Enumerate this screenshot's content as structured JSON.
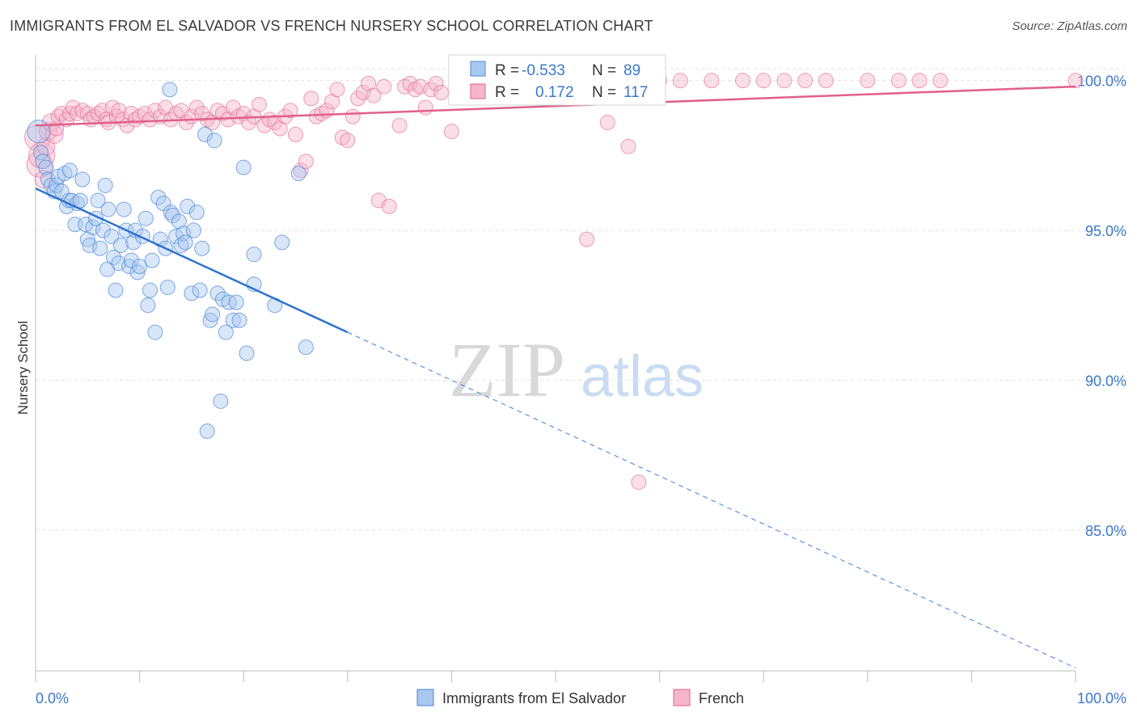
{
  "header": {
    "title": "IMMIGRANTS FROM EL SALVADOR VS FRENCH NURSERY SCHOOL CORRELATION CHART",
    "source": "Source: ZipAtlas.com"
  },
  "watermark": {
    "zip": "ZIP",
    "atlas": "atlas"
  },
  "chart_data": {
    "type": "scatter",
    "title": "IMMIGRANTS FROM EL SALVADOR VS FRENCH NURSERY SCHOOL CORRELATION CHART",
    "xlabel": "",
    "ylabel": "Nursery School",
    "xlim": [
      0,
      100
    ],
    "ylim": [
      80.3,
      100.8
    ],
    "x_tick_labels": [
      "0.0%",
      "100.0%"
    ],
    "y_ticks": [
      85,
      90,
      95,
      100
    ],
    "y_tick_labels": [
      "85.0%",
      "90.0%",
      "95.0%",
      "100.0%"
    ],
    "grid": true,
    "legend_position": "bottom-center",
    "colors": {
      "blue": "#4a86d4",
      "blue_fill": "#a9c8ef",
      "pink": "#e0608a",
      "pink_fill": "#f5b6cb",
      "tick": "#3a78c9"
    },
    "stats": [
      {
        "series": "Immigrants from El Salvador",
        "r_label": "R =",
        "r_value": "-0.533",
        "n_label": "N =",
        "n_value": "89"
      },
      {
        "series": "French",
        "r_label": "R =",
        "r_value": "0.172",
        "n_label": "N =",
        "n_value": "117"
      }
    ],
    "series": [
      {
        "name": "Immigrants from El Salvador",
        "color": "#4a86d4",
        "trend": {
          "x": [
            0,
            30
          ],
          "y": [
            96.4,
            91.6
          ]
        },
        "trend_extension": {
          "x": [
            30,
            100
          ],
          "y": [
            91.6,
            80.4
          ]
        },
        "points": [
          [
            0.3,
            98.3
          ],
          [
            0.5,
            97.6
          ],
          [
            0.7,
            97.3
          ],
          [
            1.0,
            97.1
          ],
          [
            1.2,
            96.7
          ],
          [
            1.5,
            96.5
          ],
          [
            1.8,
            96.3
          ],
          [
            2.0,
            96.5
          ],
          [
            2.2,
            96.8
          ],
          [
            2.5,
            96.3
          ],
          [
            2.8,
            96.9
          ],
          [
            3.0,
            95.8
          ],
          [
            3.2,
            96.0
          ],
          [
            3.5,
            96.0
          ],
          [
            3.8,
            95.2
          ],
          [
            4.0,
            95.9
          ],
          [
            4.3,
            96.0
          ],
          [
            4.5,
            96.7
          ],
          [
            4.8,
            95.2
          ],
          [
            5.0,
            94.7
          ],
          [
            5.2,
            94.5
          ],
          [
            5.5,
            95.1
          ],
          [
            5.8,
            95.4
          ],
          [
            6.0,
            96.0
          ],
          [
            6.2,
            94.4
          ],
          [
            6.5,
            95.0
          ],
          [
            6.7,
            96.5
          ],
          [
            6.9,
            93.7
          ],
          [
            7.0,
            95.7
          ],
          [
            7.3,
            94.8
          ],
          [
            7.5,
            94.1
          ],
          [
            7.7,
            93.0
          ],
          [
            8.0,
            93.9
          ],
          [
            8.2,
            94.5
          ],
          [
            8.5,
            95.7
          ],
          [
            8.7,
            95.0
          ],
          [
            9.0,
            93.8
          ],
          [
            9.2,
            94.0
          ],
          [
            9.4,
            94.6
          ],
          [
            9.6,
            95.0
          ],
          [
            9.8,
            93.6
          ],
          [
            10.0,
            93.8
          ],
          [
            10.3,
            94.8
          ],
          [
            10.6,
            95.4
          ],
          [
            10.8,
            92.5
          ],
          [
            11.0,
            93.0
          ],
          [
            11.2,
            94.0
          ],
          [
            11.5,
            91.6
          ],
          [
            11.8,
            96.1
          ],
          [
            12.0,
            94.7
          ],
          [
            12.3,
            95.9
          ],
          [
            12.5,
            94.4
          ],
          [
            12.7,
            93.1
          ],
          [
            12.9,
            99.7
          ],
          [
            13.0,
            95.6
          ],
          [
            13.2,
            95.5
          ],
          [
            13.5,
            94.8
          ],
          [
            13.8,
            95.3
          ],
          [
            14.0,
            94.5
          ],
          [
            14.2,
            94.9
          ],
          [
            14.4,
            94.6
          ],
          [
            14.6,
            95.8
          ],
          [
            15.0,
            92.9
          ],
          [
            15.2,
            95.0
          ],
          [
            15.5,
            95.6
          ],
          [
            15.8,
            93.0
          ],
          [
            16.0,
            94.4
          ],
          [
            16.3,
            98.2
          ],
          [
            16.5,
            88.3
          ],
          [
            16.8,
            92.0
          ],
          [
            17.0,
            92.2
          ],
          [
            17.2,
            98.0
          ],
          [
            17.5,
            92.9
          ],
          [
            17.8,
            89.3
          ],
          [
            18.0,
            92.7
          ],
          [
            18.3,
            91.6
          ],
          [
            18.6,
            92.6
          ],
          [
            19.0,
            92.0
          ],
          [
            19.3,
            92.6
          ],
          [
            19.6,
            92.0
          ],
          [
            20.0,
            97.1
          ],
          [
            20.3,
            90.9
          ],
          [
            21.0,
            94.2
          ],
          [
            21.0,
            93.2
          ],
          [
            23.0,
            92.5
          ],
          [
            23.7,
            94.6
          ],
          [
            25.3,
            96.9
          ],
          [
            26.0,
            91.1
          ],
          [
            3.3,
            97.0
          ]
        ]
      },
      {
        "name": "French",
        "color": "#e0608a",
        "trend": {
          "x": [
            0,
            100
          ],
          "y": [
            98.5,
            99.8
          ]
        },
        "points": [
          [
            0.2,
            98.1
          ],
          [
            0.4,
            97.2
          ],
          [
            0.6,
            97.5
          ],
          [
            0.8,
            96.7
          ],
          [
            1.0,
            97.8
          ],
          [
            1.2,
            98.3
          ],
          [
            1.5,
            98.6
          ],
          [
            1.8,
            98.2
          ],
          [
            2.0,
            98.4
          ],
          [
            2.2,
            98.8
          ],
          [
            2.5,
            98.9
          ],
          [
            3.0,
            98.7
          ],
          [
            3.3,
            98.9
          ],
          [
            3.6,
            99.1
          ],
          [
            4.0,
            98.9
          ],
          [
            4.5,
            99.0
          ],
          [
            5.0,
            98.9
          ],
          [
            5.3,
            98.7
          ],
          [
            5.6,
            98.8
          ],
          [
            6.0,
            98.9
          ],
          [
            6.4,
            99.0
          ],
          [
            6.8,
            98.7
          ],
          [
            7.0,
            98.6
          ],
          [
            7.4,
            99.1
          ],
          [
            7.8,
            98.8
          ],
          [
            8.0,
            99.0
          ],
          [
            8.4,
            98.7
          ],
          [
            8.8,
            98.5
          ],
          [
            9.2,
            98.9
          ],
          [
            9.6,
            98.7
          ],
          [
            10.0,
            98.8
          ],
          [
            10.5,
            98.9
          ],
          [
            11.0,
            98.7
          ],
          [
            11.5,
            99.0
          ],
          [
            12.0,
            98.8
          ],
          [
            12.5,
            99.1
          ],
          [
            13.0,
            98.7
          ],
          [
            13.5,
            98.9
          ],
          [
            14.0,
            99.0
          ],
          [
            14.5,
            98.6
          ],
          [
            15.0,
            98.8
          ],
          [
            15.5,
            99.1
          ],
          [
            16.0,
            98.9
          ],
          [
            16.5,
            98.7
          ],
          [
            17.0,
            98.6
          ],
          [
            17.5,
            99.0
          ],
          [
            18.0,
            98.9
          ],
          [
            18.5,
            98.7
          ],
          [
            19.0,
            99.1
          ],
          [
            19.5,
            98.8
          ],
          [
            20.0,
            98.9
          ],
          [
            20.5,
            98.6
          ],
          [
            21.0,
            98.8
          ],
          [
            21.5,
            99.2
          ],
          [
            22.0,
            98.5
          ],
          [
            22.5,
            98.7
          ],
          [
            23.0,
            98.6
          ],
          [
            23.5,
            98.4
          ],
          [
            24.0,
            98.8
          ],
          [
            24.5,
            99.0
          ],
          [
            25.0,
            98.2
          ],
          [
            25.5,
            97.0
          ],
          [
            26.0,
            97.3
          ],
          [
            26.5,
            99.4
          ],
          [
            27.0,
            98.8
          ],
          [
            27.5,
            98.9
          ],
          [
            28.0,
            99.0
          ],
          [
            28.5,
            99.3
          ],
          [
            29.0,
            99.7
          ],
          [
            29.5,
            98.1
          ],
          [
            30.0,
            98.0
          ],
          [
            30.5,
            98.8
          ],
          [
            31.0,
            99.4
          ],
          [
            31.5,
            99.6
          ],
          [
            32.0,
            99.9
          ],
          [
            32.5,
            99.5
          ],
          [
            33.0,
            96.0
          ],
          [
            33.5,
            99.8
          ],
          [
            34.0,
            95.8
          ],
          [
            35.0,
            98.5
          ],
          [
            35.5,
            99.8
          ],
          [
            36.0,
            99.9
          ],
          [
            36.5,
            99.7
          ],
          [
            37.0,
            99.8
          ],
          [
            37.5,
            99.1
          ],
          [
            38.0,
            99.7
          ],
          [
            38.5,
            99.9
          ],
          [
            39.0,
            99.6
          ],
          [
            40.0,
            98.3
          ],
          [
            41.0,
            99.8
          ],
          [
            42.0,
            99.9
          ],
          [
            43.0,
            100.0
          ],
          [
            44.0,
            99.7
          ],
          [
            45.0,
            99.9
          ],
          [
            46.0,
            100.0
          ],
          [
            47.0,
            99.8
          ],
          [
            48.0,
            99.9
          ],
          [
            50.0,
            100.0
          ],
          [
            51.0,
            99.6
          ],
          [
            52.0,
            100.0
          ],
          [
            53.0,
            94.7
          ],
          [
            55.0,
            98.6
          ],
          [
            57.0,
            97.8
          ],
          [
            58.0,
            86.6
          ],
          [
            60.0,
            100.0
          ],
          [
            62.0,
            100.0
          ],
          [
            65.0,
            100.0
          ],
          [
            68.0,
            100.0
          ],
          [
            70.0,
            100.0
          ],
          [
            72.0,
            100.0
          ],
          [
            74.0,
            100.0
          ],
          [
            76.0,
            100.0
          ],
          [
            80.0,
            100.0
          ],
          [
            83.0,
            100.0
          ],
          [
            85.0,
            100.0
          ],
          [
            87.0,
            100.0
          ],
          [
            100.0,
            100.0
          ]
        ]
      }
    ]
  },
  "legend": {
    "items": [
      {
        "label": "Immigrants from El Salvador"
      },
      {
        "label": "French"
      }
    ]
  }
}
